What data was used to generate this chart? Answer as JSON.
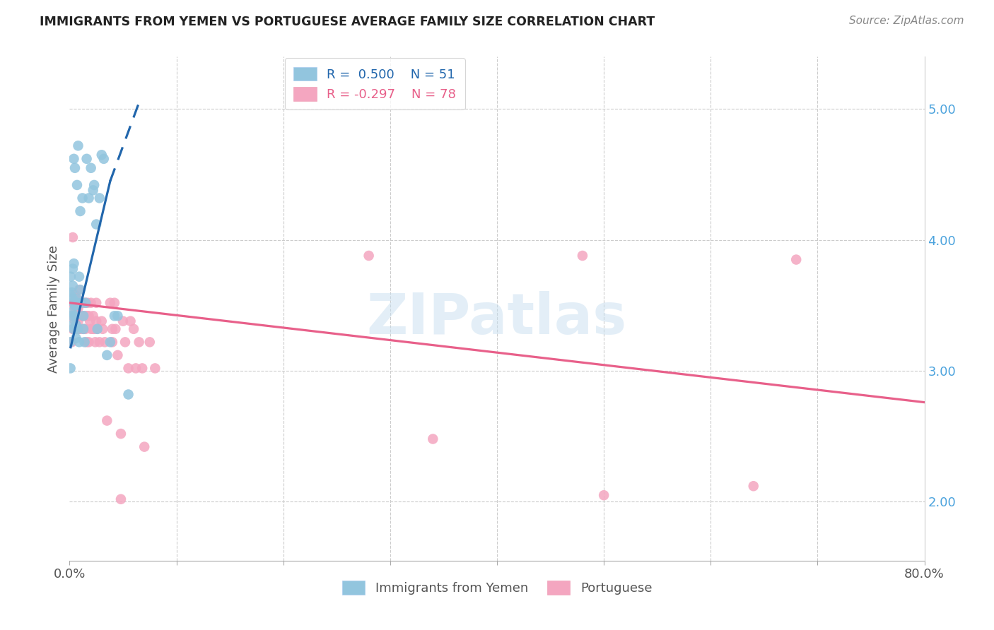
{
  "title": "IMMIGRANTS FROM YEMEN VS PORTUGUESE AVERAGE FAMILY SIZE CORRELATION CHART",
  "source": "Source: ZipAtlas.com",
  "ylabel": "Average Family Size",
  "yticks": [
    2.0,
    3.0,
    4.0,
    5.0
  ],
  "xlim": [
    0.0,
    0.8
  ],
  "ylim": [
    1.55,
    5.4
  ],
  "blue_color": "#92c5de",
  "pink_color": "#f4a6c0",
  "blue_line_color": "#2166ac",
  "pink_line_color": "#e8608a",
  "watermark": "ZIPatlas",
  "blue_scatter": [
    [
      0.001,
      3.58
    ],
    [
      0.001,
      3.72
    ],
    [
      0.002,
      3.45
    ],
    [
      0.002,
      3.6
    ],
    [
      0.002,
      3.35
    ],
    [
      0.003,
      3.55
    ],
    [
      0.003,
      3.65
    ],
    [
      0.003,
      3.42
    ],
    [
      0.003,
      3.78
    ],
    [
      0.004,
      3.52
    ],
    [
      0.004,
      3.32
    ],
    [
      0.004,
      3.82
    ],
    [
      0.004,
      4.62
    ],
    [
      0.005,
      3.5
    ],
    [
      0.005,
      4.55
    ],
    [
      0.005,
      3.42
    ],
    [
      0.006,
      3.35
    ],
    [
      0.006,
      3.25
    ],
    [
      0.006,
      3.5
    ],
    [
      0.007,
      3.55
    ],
    [
      0.007,
      4.42
    ],
    [
      0.007,
      3.52
    ],
    [
      0.008,
      3.32
    ],
    [
      0.008,
      4.72
    ],
    [
      0.009,
      3.22
    ],
    [
      0.009,
      3.72
    ],
    [
      0.01,
      3.62
    ],
    [
      0.01,
      4.22
    ],
    [
      0.011,
      3.52
    ],
    [
      0.012,
      4.32
    ],
    [
      0.013,
      3.42
    ],
    [
      0.013,
      3.32
    ],
    [
      0.014,
      3.22
    ],
    [
      0.015,
      3.52
    ],
    [
      0.016,
      4.62
    ],
    [
      0.018,
      4.32
    ],
    [
      0.02,
      4.55
    ],
    [
      0.022,
      4.38
    ],
    [
      0.023,
      4.42
    ],
    [
      0.025,
      4.12
    ],
    [
      0.026,
      3.32
    ],
    [
      0.028,
      4.32
    ],
    [
      0.03,
      4.65
    ],
    [
      0.032,
      4.62
    ],
    [
      0.035,
      3.12
    ],
    [
      0.038,
      3.22
    ],
    [
      0.042,
      3.42
    ],
    [
      0.045,
      3.42
    ],
    [
      0.055,
      2.82
    ],
    [
      0.0005,
      3.22
    ],
    [
      0.0008,
      3.02
    ]
  ],
  "pink_scatter": [
    [
      0.001,
      3.42
    ],
    [
      0.002,
      3.52
    ],
    [
      0.002,
      3.22
    ],
    [
      0.003,
      3.52
    ],
    [
      0.003,
      3.32
    ],
    [
      0.003,
      4.02
    ],
    [
      0.004,
      3.42
    ],
    [
      0.004,
      3.32
    ],
    [
      0.005,
      3.58
    ],
    [
      0.005,
      3.48
    ],
    [
      0.005,
      3.38
    ],
    [
      0.006,
      3.52
    ],
    [
      0.006,
      3.32
    ],
    [
      0.006,
      3.42
    ],
    [
      0.007,
      3.52
    ],
    [
      0.007,
      3.42
    ],
    [
      0.007,
      3.32
    ],
    [
      0.007,
      3.55
    ],
    [
      0.008,
      3.48
    ],
    [
      0.008,
      3.38
    ],
    [
      0.009,
      3.32
    ],
    [
      0.009,
      3.62
    ],
    [
      0.01,
      3.52
    ],
    [
      0.01,
      3.42
    ],
    [
      0.01,
      3.32
    ],
    [
      0.011,
      3.52
    ],
    [
      0.011,
      3.42
    ],
    [
      0.012,
      3.52
    ],
    [
      0.012,
      3.42
    ],
    [
      0.013,
      3.32
    ],
    [
      0.013,
      3.52
    ],
    [
      0.014,
      3.42
    ],
    [
      0.015,
      3.52
    ],
    [
      0.015,
      3.32
    ],
    [
      0.016,
      3.42
    ],
    [
      0.016,
      3.22
    ],
    [
      0.017,
      3.52
    ],
    [
      0.018,
      3.42
    ],
    [
      0.018,
      3.22
    ],
    [
      0.019,
      3.38
    ],
    [
      0.02,
      3.52
    ],
    [
      0.02,
      3.32
    ],
    [
      0.022,
      3.42
    ],
    [
      0.022,
      3.32
    ],
    [
      0.023,
      3.32
    ],
    [
      0.024,
      3.22
    ],
    [
      0.025,
      3.52
    ],
    [
      0.025,
      3.38
    ],
    [
      0.026,
      3.32
    ],
    [
      0.028,
      3.22
    ],
    [
      0.03,
      3.38
    ],
    [
      0.031,
      3.32
    ],
    [
      0.033,
      3.22
    ],
    [
      0.035,
      2.62
    ],
    [
      0.038,
      3.52
    ],
    [
      0.04,
      3.32
    ],
    [
      0.04,
      3.22
    ],
    [
      0.042,
      3.52
    ],
    [
      0.043,
      3.32
    ],
    [
      0.045,
      3.12
    ],
    [
      0.048,
      2.52
    ],
    [
      0.05,
      3.38
    ],
    [
      0.052,
      3.22
    ],
    [
      0.055,
      3.02
    ],
    [
      0.057,
      3.38
    ],
    [
      0.06,
      3.32
    ],
    [
      0.062,
      3.02
    ],
    [
      0.065,
      3.22
    ],
    [
      0.068,
      3.02
    ],
    [
      0.07,
      2.42
    ],
    [
      0.075,
      3.22
    ],
    [
      0.08,
      3.02
    ],
    [
      0.28,
      3.88
    ],
    [
      0.48,
      3.88
    ],
    [
      0.68,
      3.85
    ],
    [
      0.048,
      2.02
    ],
    [
      0.5,
      2.05
    ],
    [
      0.64,
      2.12
    ],
    [
      0.34,
      2.48
    ]
  ],
  "blue_trendline_solid": [
    [
      0.001,
      3.18
    ],
    [
      0.038,
      4.45
    ]
  ],
  "blue_trendline_dashed": [
    [
      0.038,
      4.45
    ],
    [
      0.065,
      5.05
    ]
  ],
  "pink_trendline": [
    [
      0.0,
      3.52
    ],
    [
      0.8,
      2.76
    ]
  ]
}
